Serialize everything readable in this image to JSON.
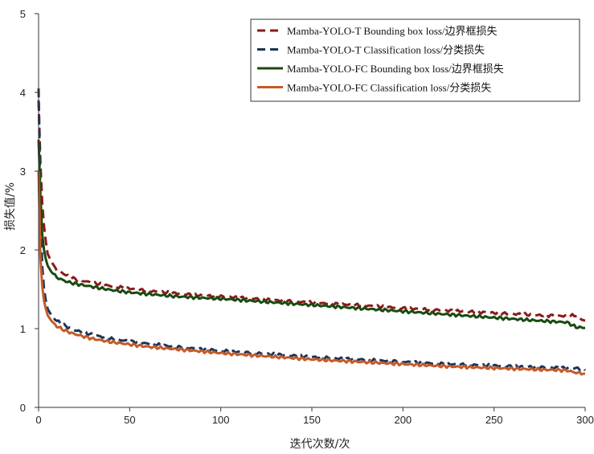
{
  "chart_data": {
    "type": "line",
    "title": "",
    "xlabel": "迭代次数/次",
    "ylabel": "损失值/%",
    "xlim": [
      0,
      300
    ],
    "ylim": [
      0,
      5
    ],
    "xticks": [
      0,
      50,
      100,
      150,
      200,
      250,
      300
    ],
    "yticks": [
      0,
      1,
      2,
      3,
      4,
      5
    ],
    "grid": false,
    "legend_position": "top-right",
    "series": [
      {
        "name": "Mamba-YOLO-T Bounding box loss/边界框损失",
        "color": "#8b1a1a",
        "dash": true,
        "x": [
          0,
          1,
          2,
          3,
          4,
          5,
          7,
          10,
          15,
          20,
          30,
          40,
          50,
          60,
          75,
          90,
          100,
          125,
          150,
          175,
          200,
          225,
          250,
          275,
          290,
          295,
          298,
          300
        ],
        "y": [
          3.9,
          3.1,
          2.6,
          2.3,
          2.1,
          1.95,
          1.85,
          1.75,
          1.68,
          1.63,
          1.58,
          1.54,
          1.51,
          1.48,
          1.45,
          1.42,
          1.41,
          1.37,
          1.33,
          1.3,
          1.26,
          1.23,
          1.2,
          1.17,
          1.16,
          1.17,
          1.12,
          1.1
        ]
      },
      {
        "name": "Mamba-YOLO-T Classification loss/分类损失",
        "color": "#1c3458",
        "dash": true,
        "x": [
          0,
          1,
          2,
          3,
          4,
          5,
          7,
          10,
          15,
          20,
          30,
          40,
          50,
          60,
          75,
          90,
          100,
          125,
          150,
          175,
          200,
          225,
          250,
          275,
          290,
          295,
          300
        ],
        "y": [
          4.05,
          2.6,
          1.8,
          1.5,
          1.35,
          1.25,
          1.17,
          1.1,
          1.03,
          0.98,
          0.92,
          0.87,
          0.84,
          0.81,
          0.77,
          0.74,
          0.72,
          0.68,
          0.64,
          0.61,
          0.58,
          0.55,
          0.53,
          0.51,
          0.5,
          0.5,
          0.47
        ]
      },
      {
        "name": "Mamba-YOLO-FC Bounding box loss/边界框损失",
        "color": "#1a4a12",
        "dash": false,
        "x": [
          0,
          1,
          2,
          3,
          4,
          5,
          7,
          10,
          15,
          20,
          30,
          40,
          50,
          60,
          75,
          90,
          100,
          125,
          150,
          175,
          200,
          225,
          250,
          275,
          290,
          295,
          300
        ],
        "y": [
          3.4,
          2.7,
          2.2,
          2.0,
          1.88,
          1.8,
          1.72,
          1.65,
          1.6,
          1.57,
          1.53,
          1.49,
          1.46,
          1.44,
          1.41,
          1.39,
          1.38,
          1.34,
          1.3,
          1.26,
          1.22,
          1.18,
          1.14,
          1.1,
          1.08,
          1.02,
          1.01
        ]
      },
      {
        "name": "Mamba-YOLO-FC Classification loss/分类损失",
        "color": "#c45a28",
        "dash": false,
        "x": [
          0,
          1,
          2,
          3,
          4,
          5,
          7,
          10,
          15,
          20,
          30,
          40,
          50,
          60,
          75,
          90,
          100,
          125,
          150,
          175,
          200,
          225,
          250,
          275,
          290,
          295,
          300
        ],
        "y": [
          3.0,
          1.9,
          1.55,
          1.35,
          1.25,
          1.17,
          1.1,
          1.03,
          0.97,
          0.93,
          0.87,
          0.83,
          0.8,
          0.77,
          0.74,
          0.71,
          0.69,
          0.65,
          0.61,
          0.58,
          0.55,
          0.52,
          0.5,
          0.48,
          0.47,
          0.44,
          0.43
        ]
      }
    ]
  }
}
